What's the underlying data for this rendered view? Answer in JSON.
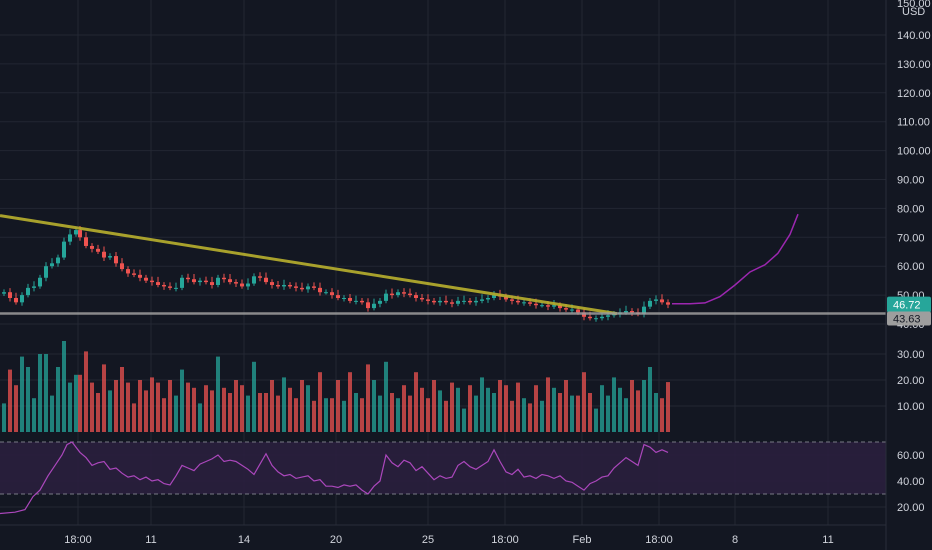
{
  "chart_data": [
    {
      "type": "candlestick",
      "panel": "price",
      "currency": "USD",
      "price_axis": {
        "ylim": [
          38,
          150
        ],
        "ticks": [
          "40.00",
          "50.00",
          "60.00",
          "70.00",
          "80.00",
          "90.00",
          "100.00",
          "110.00",
          "120.00",
          "130.00",
          "140.00"
        ],
        "partial_top_label": "150.00"
      },
      "last_price": {
        "value": 46.72,
        "label": "46.72",
        "color": "#26a69a"
      },
      "horizontal_line": {
        "value": 43.63,
        "label": "43.63",
        "color": "#9e9e9e"
      },
      "trendline": {
        "from": [
          0,
          77.5
        ],
        "to": [
          617,
          43.6
        ],
        "color": "#b9b02e"
      },
      "projection_curve": {
        "color": "#9c27b0",
        "points": [
          [
            672,
            47.0
          ],
          [
            690,
            47.0
          ],
          [
            705,
            47.3
          ],
          [
            720,
            49.5
          ],
          [
            735,
            53.5
          ],
          [
            750,
            58.0
          ],
          [
            765,
            60.5
          ],
          [
            778,
            64.5
          ],
          [
            790,
            71.0
          ],
          [
            798,
            78.0
          ]
        ]
      },
      "ohlc_close": [
        [
          4,
          51
        ],
        [
          10,
          49
        ],
        [
          16,
          47.5
        ],
        [
          22,
          50
        ],
        [
          28,
          52.5
        ],
        [
          34,
          53
        ],
        [
          40,
          56
        ],
        [
          46,
          60
        ],
        [
          52,
          61
        ],
        [
          58,
          63
        ],
        [
          64,
          68.5
        ],
        [
          70,
          71
        ],
        [
          76,
          72.5
        ],
        [
          80,
          70
        ],
        [
          86,
          67
        ],
        [
          92,
          66
        ],
        [
          98,
          65
        ],
        [
          104,
          63
        ],
        [
          110,
          63.5
        ],
        [
          116,
          61
        ],
        [
          122,
          59
        ],
        [
          128,
          57.5
        ],
        [
          134,
          57
        ],
        [
          140,
          56
        ],
        [
          146,
          55
        ],
        [
          152,
          54.5
        ],
        [
          158,
          53.5
        ],
        [
          164,
          53
        ],
        [
          170,
          52.5
        ],
        [
          176,
          52.5
        ],
        [
          182,
          56
        ],
        [
          188,
          55.5
        ],
        [
          194,
          54.5
        ],
        [
          200,
          55
        ],
        [
          206,
          54.5
        ],
        [
          212,
          53.5
        ],
        [
          218,
          56
        ],
        [
          224,
          55.5
        ],
        [
          230,
          54.5
        ],
        [
          236,
          54
        ],
        [
          242,
          53
        ],
        [
          248,
          54
        ],
        [
          254,
          56.5
        ],
        [
          260,
          56
        ],
        [
          266,
          54.5
        ],
        [
          272,
          53.5
        ],
        [
          278,
          53
        ],
        [
          284,
          53.5
        ],
        [
          290,
          53
        ],
        [
          296,
          52.5
        ],
        [
          302,
          52
        ],
        [
          308,
          53
        ],
        [
          314,
          52.5
        ],
        [
          320,
          51
        ],
        [
          326,
          51
        ],
        [
          332,
          50
        ],
        [
          338,
          49
        ],
        [
          344,
          49
        ],
        [
          350,
          48
        ],
        [
          356,
          48
        ],
        [
          362,
          47.5
        ],
        [
          368,
          45.5
        ],
        [
          374,
          47
        ],
        [
          380,
          48
        ],
        [
          386,
          50.5
        ],
        [
          392,
          50
        ],
        [
          398,
          51
        ],
        [
          404,
          50.5
        ],
        [
          410,
          50
        ],
        [
          416,
          49
        ],
        [
          422,
          48.5
        ],
        [
          428,
          48
        ],
        [
          434,
          47.5
        ],
        [
          440,
          48
        ],
        [
          446,
          47.5
        ],
        [
          452,
          47
        ],
        [
          458,
          48
        ],
        [
          464,
          48
        ],
        [
          470,
          47.5
        ],
        [
          476,
          48
        ],
        [
          482,
          48.5
        ],
        [
          488,
          49
        ],
        [
          494,
          50
        ],
        [
          500,
          49.5
        ],
        [
          506,
          48.5
        ],
        [
          512,
          48
        ],
        [
          518,
          47.5
        ],
        [
          524,
          47.5
        ],
        [
          530,
          47
        ],
        [
          536,
          46.5
        ],
        [
          542,
          46.5
        ],
        [
          548,
          46
        ],
        [
          554,
          46.5
        ],
        [
          560,
          45.5
        ],
        [
          566,
          45
        ],
        [
          572,
          45
        ],
        [
          578,
          44
        ],
        [
          584,
          42.5
        ],
        [
          590,
          42
        ],
        [
          596,
          42
        ],
        [
          602,
          42.5
        ],
        [
          608,
          43
        ],
        [
          614,
          43.5
        ],
        [
          620,
          44
        ],
        [
          626,
          44.5
        ],
        [
          632,
          44
        ],
        [
          638,
          43.5
        ],
        [
          644,
          46
        ],
        [
          650,
          48
        ],
        [
          656,
          48.5
        ],
        [
          662,
          47.5
        ],
        [
          668,
          46.7
        ]
      ],
      "volume_panel": {
        "ylim": [
          5,
          42
        ],
        "ticks": [
          "10.00",
          "20.00",
          "30.00"
        ]
      }
    },
    {
      "type": "line",
      "panel": "rsi",
      "color": "#ab47bc",
      "ylim": [
        13,
        77
      ],
      "ticks": [
        "20.00",
        "40.00",
        "60.00"
      ],
      "band": {
        "upper": 70,
        "lower": 30
      },
      "points": [
        [
          0,
          15
        ],
        [
          15,
          16
        ],
        [
          25,
          18
        ],
        [
          33,
          28
        ],
        [
          40,
          33
        ],
        [
          48,
          44
        ],
        [
          55,
          52
        ],
        [
          62,
          60
        ],
        [
          67,
          68
        ],
        [
          72,
          70
        ],
        [
          76,
          66
        ],
        [
          80,
          62
        ],
        [
          86,
          58
        ],
        [
          92,
          52
        ],
        [
          98,
          54
        ],
        [
          104,
          55
        ],
        [
          110,
          49
        ],
        [
          116,
          50
        ],
        [
          122,
          46
        ],
        [
          128,
          43
        ],
        [
          134,
          44
        ],
        [
          140,
          41
        ],
        [
          146,
          43
        ],
        [
          152,
          40
        ],
        [
          158,
          41
        ],
        [
          164,
          38
        ],
        [
          170,
          37
        ],
        [
          176,
          44
        ],
        [
          182,
          52
        ],
        [
          188,
          50
        ],
        [
          194,
          48
        ],
        [
          200,
          53
        ],
        [
          206,
          55
        ],
        [
          212,
          57
        ],
        [
          218,
          60
        ],
        [
          224,
          55
        ],
        [
          230,
          56
        ],
        [
          236,
          55
        ],
        [
          242,
          52
        ],
        [
          248,
          49
        ],
        [
          254,
          45
        ],
        [
          260,
          53
        ],
        [
          266,
          61
        ],
        [
          272,
          52
        ],
        [
          278,
          47
        ],
        [
          284,
          44
        ],
        [
          290,
          45
        ],
        [
          296,
          42
        ],
        [
          302,
          43
        ],
        [
          308,
          44
        ],
        [
          314,
          40
        ],
        [
          320,
          41
        ],
        [
          326,
          36
        ],
        [
          332,
          36
        ],
        [
          338,
          35
        ],
        [
          344,
          37
        ],
        [
          350,
          36
        ],
        [
          356,
          37
        ],
        [
          362,
          33
        ],
        [
          368,
          30
        ],
        [
          374,
          36
        ],
        [
          380,
          40
        ],
        [
          386,
          60
        ],
        [
          392,
          54
        ],
        [
          398,
          51
        ],
        [
          404,
          56
        ],
        [
          410,
          54
        ],
        [
          416,
          48
        ],
        [
          422,
          51
        ],
        [
          428,
          46
        ],
        [
          434,
          41
        ],
        [
          440,
          44
        ],
        [
          446,
          42
        ],
        [
          452,
          43
        ],
        [
          458,
          52
        ],
        [
          464,
          55
        ],
        [
          470,
          51
        ],
        [
          476,
          49
        ],
        [
          482,
          52
        ],
        [
          488,
          55
        ],
        [
          494,
          64
        ],
        [
          500,
          55
        ],
        [
          506,
          47
        ],
        [
          512,
          45
        ],
        [
          518,
          49
        ],
        [
          524,
          43
        ],
        [
          530,
          44
        ],
        [
          536,
          42
        ],
        [
          542,
          45
        ],
        [
          548,
          44
        ],
        [
          554,
          42
        ],
        [
          560,
          44
        ],
        [
          566,
          40
        ],
        [
          572,
          39
        ],
        [
          578,
          36
        ],
        [
          584,
          33
        ],
        [
          590,
          38
        ],
        [
          596,
          40
        ],
        [
          602,
          43
        ],
        [
          608,
          44
        ],
        [
          614,
          50
        ],
        [
          620,
          54
        ],
        [
          626,
          58
        ],
        [
          632,
          55
        ],
        [
          638,
          52
        ],
        [
          644,
          68
        ],
        [
          650,
          66
        ],
        [
          656,
          62
        ],
        [
          662,
          64
        ],
        [
          668,
          62
        ]
      ]
    }
  ],
  "x_axis": {
    "ticks": [
      {
        "x": 78,
        "label": "18:00"
      },
      {
        "x": 151,
        "label": "11"
      },
      {
        "x": 244,
        "label": "14"
      },
      {
        "x": 336,
        "label": "20"
      },
      {
        "x": 428,
        "label": "25"
      },
      {
        "x": 505,
        "label": "18:00"
      },
      {
        "x": 582,
        "label": "Feb"
      },
      {
        "x": 659,
        "label": "18:00"
      },
      {
        "x": 735,
        "label": "8"
      },
      {
        "x": 828,
        "label": "11"
      }
    ]
  },
  "colors": {
    "up": "#26a69a",
    "down": "#ef5350",
    "background": "#131722",
    "grid": "#232733",
    "axis_text": "#d1d4dc"
  }
}
